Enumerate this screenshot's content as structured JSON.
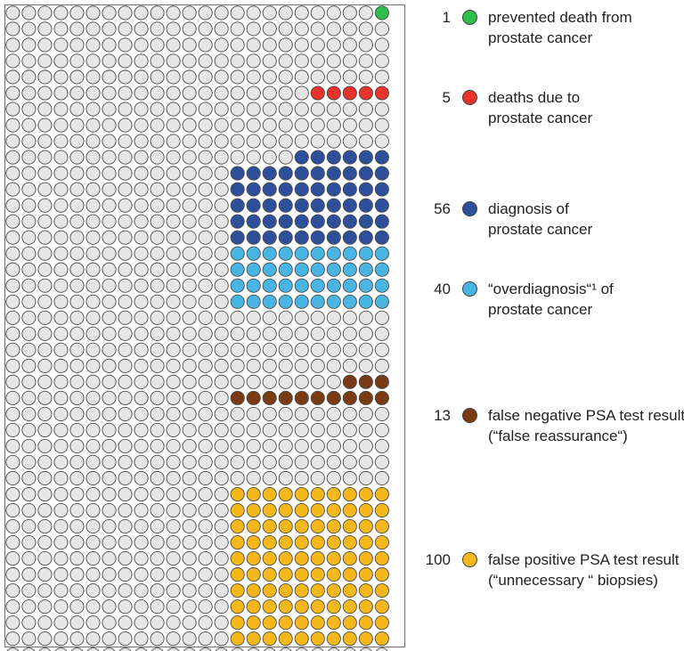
{
  "chart_data": {
    "type": "icon-array",
    "columns": 24,
    "rows": 42,
    "base_color": "#e6e6e6",
    "categories": [
      {
        "key": "prevented",
        "count": 1,
        "color": "#2dbd4b",
        "label_lines": [
          "prevented death from",
          "prostate cancer"
        ]
      },
      {
        "key": "deaths",
        "count": 5,
        "color": "#e8322c",
        "label_lines": [
          "deaths due to",
          "prostate cancer"
        ]
      },
      {
        "key": "diagnosis",
        "count": 56,
        "color": "#2e4f9a",
        "label_lines": [
          "diagnosis of",
          "prostate cancer"
        ]
      },
      {
        "key": "overdiagnosis",
        "count": 40,
        "color": "#48b5e3",
        "label_lines": [
          "“overdiagnosis“¹ of",
          "prostate cancer"
        ]
      },
      {
        "key": "false-negative",
        "count": 13,
        "color": "#7a3a14",
        "label_lines": [
          "false negative PSA test result",
          "(“false reassurance“)"
        ]
      },
      {
        "key": "false-positive",
        "count": 100,
        "color": "#f5b81c",
        "label_lines": [
          "false positive PSA test result",
          "(“unnecessary “ biopsies)"
        ]
      }
    ]
  }
}
